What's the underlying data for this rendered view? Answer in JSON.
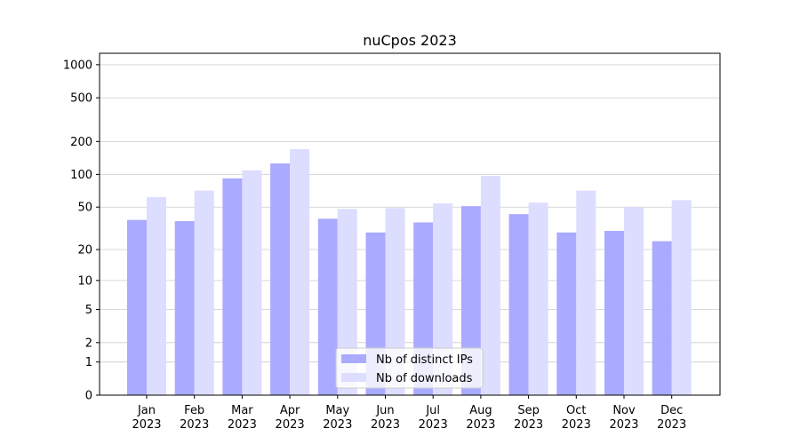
{
  "chart_data": {
    "type": "bar",
    "title": "nuCpos 2023",
    "categories": [
      "Jan\n2023",
      "Feb\n2023",
      "Mar\n2023",
      "Apr\n2023",
      "May\n2023",
      "Jun\n2023",
      "Jul\n2023",
      "Aug\n2023",
      "Sep\n2023",
      "Oct\n2023",
      "Nov\n2023",
      "Dec\n2023"
    ],
    "series": [
      {
        "name": "Nb of distinct IPs",
        "color": "#aaaaff",
        "values": [
          38,
          37,
          92,
          126,
          39,
          29,
          36,
          51,
          43,
          29,
          30,
          24
        ]
      },
      {
        "name": "Nb of downloads",
        "color": "#ddddff",
        "values": [
          62,
          71,
          109,
          170,
          48,
          49,
          54,
          97,
          55,
          71,
          50,
          58
        ]
      }
    ],
    "yscale": "log1p",
    "ylim": [
      0,
      1270
    ],
    "yticks": [
      0,
      1,
      2,
      5,
      10,
      20,
      50,
      100,
      200,
      500,
      1000
    ],
    "grid": true,
    "legend": "lower center"
  }
}
